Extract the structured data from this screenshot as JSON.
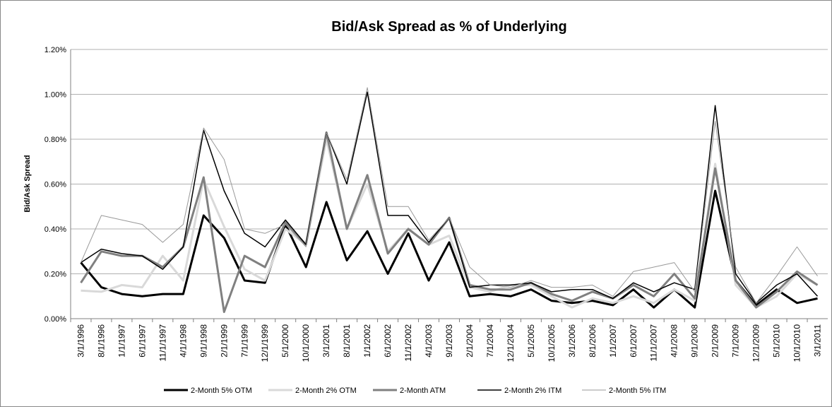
{
  "chart_data": {
    "type": "line",
    "title": "Bid/Ask Spread as % of Underlying",
    "y_label": "Bid/Ask Spread",
    "categories": [
      "3/1/1996",
      "8/1/1996",
      "1/1/1997",
      "6/1/1997",
      "11/1/1997",
      "4/1/1998",
      "9/1/1998",
      "2/1/1999",
      "7/1/1999",
      "12/1/1999",
      "5/1/2000",
      "10/1/2000",
      "3/1/2001",
      "8/1/2001",
      "1/1/2002",
      "6/1/2002",
      "11/1/2002",
      "4/1/2003",
      "9/1/2003",
      "2/1/2004",
      "7/1/2004",
      "12/1/2004",
      "5/1/2005",
      "10/1/2005",
      "3/1/2006",
      "8/1/2006",
      "1/1/2007",
      "6/1/2007",
      "11/1/2007",
      "4/1/2008",
      "9/1/2008",
      "2/1/2009",
      "7/1/2009",
      "12/1/2009",
      "5/1/2010",
      "10/1/2010",
      "3/1/2011"
    ],
    "series": [
      {
        "name": "2-Month 5% OTM",
        "color": "#000000",
        "width": 3,
        "values": [
          0.25,
          0.14,
          0.11,
          0.1,
          0.11,
          0.11,
          0.46,
          0.36,
          0.17,
          0.16,
          0.42,
          0.23,
          0.52,
          0.26,
          0.39,
          0.2,
          0.38,
          0.17,
          0.34,
          0.1,
          0.11,
          0.1,
          0.13,
          0.08,
          0.07,
          0.08,
          0.06,
          0.13,
          0.05,
          0.13,
          0.05,
          0.57,
          0.17,
          0.06,
          0.13,
          0.07,
          0.09
        ]
      },
      {
        "name": "2-Month 2% OTM",
        "color": "#d9d9d9",
        "width": 3,
        "values": [
          0.125,
          0.12,
          0.15,
          0.14,
          0.28,
          0.17,
          0.62,
          0.41,
          0.22,
          0.17,
          0.4,
          0.33,
          0.8,
          0.4,
          0.6,
          0.3,
          0.4,
          0.33,
          0.37,
          0.14,
          0.12,
          0.15,
          0.15,
          0.1,
          0.05,
          0.09,
          0.07,
          0.1,
          0.07,
          0.13,
          0.08,
          0.69,
          0.15,
          0.05,
          0.1,
          0.2,
          0.15
        ]
      },
      {
        "name": "2-Month ATM",
        "color": "#808080",
        "width": 3,
        "values": [
          0.16,
          0.3,
          0.28,
          0.28,
          0.23,
          0.32,
          0.63,
          0.03,
          0.28,
          0.23,
          0.43,
          0.33,
          0.83,
          0.4,
          0.64,
          0.29,
          0.4,
          0.33,
          0.45,
          0.15,
          0.13,
          0.13,
          0.16,
          0.11,
          0.08,
          0.12,
          0.09,
          0.15,
          0.1,
          0.2,
          0.09,
          0.67,
          0.17,
          0.05,
          0.12,
          0.21,
          0.15
        ]
      },
      {
        "name": "2-Month 2% ITM",
        "color": "#000000",
        "width": 1.5,
        "values": [
          0.25,
          0.31,
          0.29,
          0.28,
          0.22,
          0.32,
          0.84,
          0.57,
          0.38,
          0.32,
          0.44,
          0.33,
          0.83,
          0.6,
          1.01,
          0.46,
          0.46,
          0.34,
          0.45,
          0.14,
          0.15,
          0.15,
          0.16,
          0.12,
          0.13,
          0.13,
          0.09,
          0.16,
          0.12,
          0.16,
          0.13,
          0.95,
          0.2,
          0.07,
          0.15,
          0.2,
          0.1
        ]
      },
      {
        "name": "2-Month 5% ITM",
        "color": "#999999",
        "width": 1,
        "values": [
          0.25,
          0.46,
          0.44,
          0.42,
          0.34,
          0.42,
          0.85,
          0.71,
          0.4,
          0.38,
          0.42,
          0.32,
          0.83,
          0.62,
          1.03,
          0.5,
          0.5,
          0.35,
          0.45,
          0.23,
          0.15,
          0.14,
          0.17,
          0.14,
          0.14,
          0.15,
          0.1,
          0.21,
          0.23,
          0.25,
          0.12,
          0.88,
          0.23,
          0.07,
          0.19,
          0.32,
          0.19
        ]
      }
    ],
    "ylim": [
      0,
      1.2
    ],
    "yticks": [
      {
        "value": 0,
        "label": "0.00%"
      },
      {
        "value": 0.2,
        "label": "0.20%"
      },
      {
        "value": 0.4,
        "label": "0.40%"
      },
      {
        "value": 0.6,
        "label": "0.60%"
      },
      {
        "value": 0.8,
        "label": "0.80%"
      },
      {
        "value": 1.0,
        "label": "1.00%"
      },
      {
        "value": 1.2,
        "label": "1.20%"
      }
    ],
    "grid": true
  }
}
